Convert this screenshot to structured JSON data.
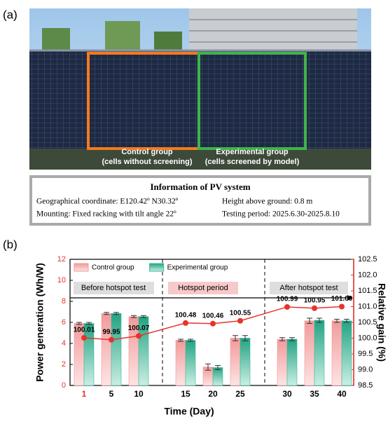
{
  "panel_a": {
    "label": "(a)",
    "control_label": "Control group",
    "control_sub": "(cells without screening)",
    "experimental_label": "Experimental group",
    "experimental_sub": "(cells screened by model)",
    "info": {
      "title": "Information of PV system",
      "lines": [
        "Geographical coordinate: E120.42º N30.32º",
        "Height above ground: 0.8 m",
        "Mounting: Fixed racking with tilt angle 22º",
        "Testing period: 2025.6.30-2025.8.10"
      ]
    }
  },
  "chart_data": {
    "type": "bar",
    "panel_label": "(b)",
    "x_label": "Time (Day)",
    "y_label": "Power generation (Wh/W)",
    "y2_label": "Relative gain (%)",
    "categories": [
      "1",
      "5",
      "10",
      "15",
      "20",
      "25",
      "30",
      "35",
      "40"
    ],
    "annotations": [
      "Before hotspot test",
      "Hotspot period",
      "After hotspot test"
    ],
    "series": [
      {
        "name": "Control group",
        "color": "#f29a9a",
        "values": [
          5.9,
          6.85,
          6.55,
          4.3,
          1.75,
          4.5,
          4.4,
          6.15,
          6.15
        ],
        "errors": [
          0.1,
          0.1,
          0.1,
          0.1,
          0.3,
          0.25,
          0.15,
          0.25,
          0.15
        ]
      },
      {
        "name": "Experimental group",
        "color": "#3bb89a",
        "values": [
          5.9,
          6.85,
          6.55,
          4.3,
          1.7,
          4.5,
          4.4,
          6.2,
          6.15
        ],
        "errors": [
          0.1,
          0.1,
          0.1,
          0.1,
          0.2,
          0.25,
          0.15,
          0.2,
          0.15
        ]
      },
      {
        "name": "Relative gain",
        "color": "#e8322b",
        "axis": "y2",
        "values": [
          100.01,
          99.95,
          100.07,
          100.48,
          100.46,
          100.55,
          100.99,
          100.95,
          101.0
        ],
        "value_labels": [
          "100.01",
          "99.95",
          "100.07",
          "100.48",
          "100.46",
          "100.55",
          "100.99",
          "100.95",
          "101.00"
        ]
      }
    ],
    "ylim": [
      0,
      12
    ],
    "yticks": [
      0,
      2,
      4,
      6,
      8,
      10,
      12
    ],
    "y2lim": [
      98.5,
      102.5
    ],
    "y2ticks": [
      98.5,
      {
        "value": 99,
        "label": "99.0"
      },
      99.5,
      {
        "value": 100,
        "label": "100.0"
      },
      100.5,
      {
        "value": 101,
        "label": "101.0"
      },
      101.5,
      {
        "value": 102,
        "label": "102.0"
      },
      102.5
    ]
  }
}
